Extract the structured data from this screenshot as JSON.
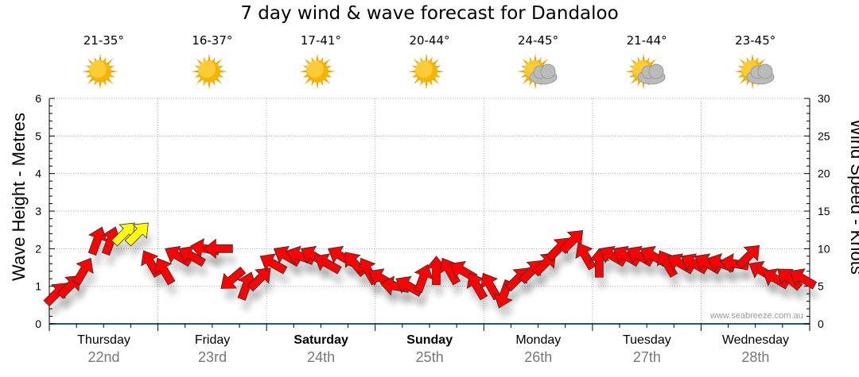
{
  "title": "7 day wind & wave forecast for Dandaloo",
  "watermark": "www.seabreeze.com.au",
  "forecast": [
    {
      "temp": "21-35°",
      "icon": "sun-icon"
    },
    {
      "temp": "16-37°",
      "icon": "sun-icon"
    },
    {
      "temp": "17-41°",
      "icon": "sun-icon"
    },
    {
      "temp": "20-44°",
      "icon": "sun-icon"
    },
    {
      "temp": "24-45°",
      "icon": "partly-cloudy-icon"
    },
    {
      "temp": "21-44°",
      "icon": "partly-cloudy-icon"
    },
    {
      "temp": "23-45°",
      "icon": "partly-cloudy-icon"
    }
  ],
  "days": [
    {
      "day": "Thursday",
      "date": "22nd",
      "bold": false
    },
    {
      "day": "Friday",
      "date": "23rd",
      "bold": false
    },
    {
      "day": "Saturday",
      "date": "24th",
      "bold": true
    },
    {
      "day": "Sunday",
      "date": "25th",
      "bold": true
    },
    {
      "day": "Monday",
      "date": "26th",
      "bold": false
    },
    {
      "day": "Tuesday",
      "date": "27th",
      "bold": false
    },
    {
      "day": "Wednesday",
      "date": "28th",
      "bold": false
    }
  ],
  "colors": {
    "arrow": "#ff0000",
    "arrow_strong": "#ffff00",
    "axis": "#1a5a8a",
    "grid": "#aaaaaa"
  },
  "chart_data": {
    "type": "scatter",
    "title": "7 day wind & wave forecast for Dandaloo",
    "ylabel_left": "Wave Height - Metres",
    "ylabel_right": "Wind Speed - Knots",
    "ylim_left": [
      0,
      6
    ],
    "ylim_right": [
      0,
      30
    ],
    "yticks_left": [
      "0",
      "1",
      "2",
      "3",
      "4",
      "5",
      "6"
    ],
    "yticks_right": [
      "0",
      "5",
      "10",
      "15",
      "20",
      "25",
      "30"
    ],
    "grid": true,
    "points_per_day": 8,
    "wind_speed_knots": [
      4,
      5,
      7,
      11,
      11,
      12,
      12,
      8,
      7,
      9,
      9,
      10,
      10,
      6,
      5,
      6,
      8,
      9,
      9,
      9,
      8,
      9,
      8,
      7,
      6,
      5,
      5,
      6,
      7,
      7,
      7,
      5,
      5,
      4,
      6,
      7,
      8,
      10,
      11,
      9,
      8,
      9,
      9,
      9,
      9,
      8,
      8,
      8,
      8,
      8,
      8,
      9,
      7,
      6,
      6,
      6
    ],
    "wind_direction_deg": [
      45,
      45,
      30,
      20,
      20,
      45,
      45,
      330,
      330,
      300,
      300,
      280,
      270,
      230,
      20,
      45,
      300,
      300,
      290,
      300,
      300,
      300,
      320,
      330,
      300,
      280,
      300,
      20,
      0,
      330,
      300,
      330,
      330,
      200,
      45,
      45,
      45,
      45,
      45,
      330,
      0,
      300,
      300,
      300,
      300,
      330,
      300,
      300,
      300,
      290,
      280,
      45,
      300,
      300,
      310,
      300
    ]
  }
}
